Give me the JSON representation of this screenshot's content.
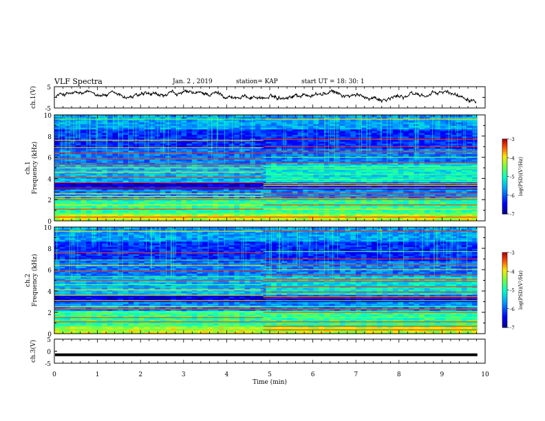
{
  "header": {
    "title": "VLF Spectra",
    "date": "Jan. 2 , 2019",
    "station": "station= KAP",
    "start": "start UT = 18: 30: 1"
  },
  "chart_data": [
    {
      "type": "line",
      "ylabel": "ch.1(V)",
      "ylim": [
        -5,
        5
      ],
      "yticks": [
        "5",
        "-5"
      ],
      "xlim": [
        0,
        10
      ],
      "series": [
        {
          "values_description_free": true,
          "mean": 0.8,
          "amplitude": 1.5
        }
      ]
    },
    {
      "type": "heatmap",
      "ylabel": [
        "ch.1",
        "Frequency (kHz)"
      ],
      "ylim": [
        0,
        10
      ],
      "yticks": [
        "0",
        "2",
        "4",
        "6",
        "8",
        "10"
      ],
      "xlim": [
        0,
        10
      ],
      "colorbar": {
        "label": "log(PSD)(V²/Hz)",
        "ticks": [
          "-3",
          "-4",
          "-5",
          "-6",
          "-7"
        ],
        "range": [
          -7,
          -3
        ]
      },
      "transition_time_min": 4.85
    },
    {
      "type": "heatmap",
      "ylabel": [
        "ch.2",
        "Frequency (kHz)"
      ],
      "ylim": [
        0,
        10
      ],
      "yticks": [
        "0",
        "2",
        "4",
        "6",
        "8",
        "10"
      ],
      "xlim": [
        0,
        10
      ],
      "colorbar": {
        "label": "log(PSD)(V²/Hz)",
        "ticks": [
          "-3",
          "-4",
          "-5",
          "-6",
          "-7"
        ],
        "range": [
          -7,
          -3
        ]
      },
      "transition_time_min": 4.85
    },
    {
      "type": "line",
      "ylabel": "ch.3(V)",
      "ylim": [
        -5,
        5
      ],
      "yticks": [
        "5",
        "0",
        "-5"
      ],
      "xlim": [
        0,
        10
      ],
      "series": [
        {
          "constant": -1.5
        }
      ]
    }
  ],
  "xaxis": {
    "label": "Time (min)",
    "ticks": [
      "0",
      "1",
      "2",
      "3",
      "4",
      "5",
      "6",
      "7",
      "8",
      "9",
      "10"
    ],
    "data_end_min": 9.82
  }
}
